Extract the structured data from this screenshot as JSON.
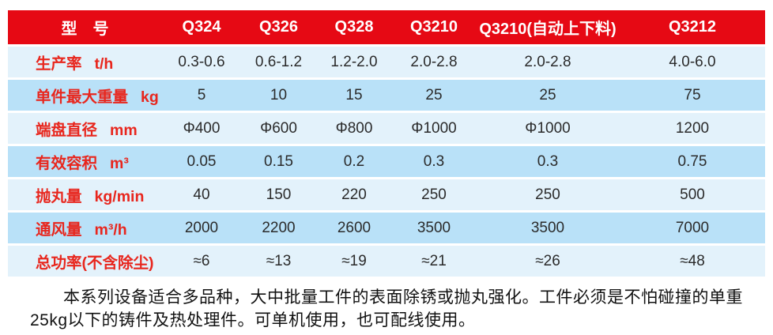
{
  "table": {
    "header": [
      "型　号",
      "Q324",
      "Q326",
      "Q328",
      "Q3210",
      "Q3210(自动上下料)",
      "Q3212"
    ],
    "rows": [
      {
        "label": "生产率",
        "unit": "t/h",
        "values": [
          "0.3-0.6",
          "0.6-1.2",
          "1.2-2.0",
          "2.0-2.8",
          "2.0-2.8",
          "4.0-6.0"
        ]
      },
      {
        "label": "单件最大重量",
        "unit": "kg",
        "values": [
          "5",
          "10",
          "15",
          "25",
          "25",
          "75"
        ]
      },
      {
        "label": "端盘直径",
        "unit": "mm",
        "values": [
          "Φ400",
          "Φ600",
          "Φ800",
          "Φ1000",
          "Φ1000",
          "1200"
        ]
      },
      {
        "label": "有效容积",
        "unit": "m³",
        "values": [
          "0.05",
          "0.15",
          "0.2",
          "0.3",
          "0.3",
          "0.75"
        ]
      },
      {
        "label": "抛丸量",
        "unit": "kg/min",
        "values": [
          "40",
          "150",
          "220",
          "250",
          "250",
          "500"
        ]
      },
      {
        "label": "通风量",
        "unit": "m³/h",
        "values": [
          "2000",
          "2200",
          "2600",
          "3500",
          "3500",
          "7000"
        ]
      },
      {
        "label": "总功率(不含除尘)",
        "unit": "",
        "values": [
          "≈6",
          "≈13",
          "≈19",
          "≈21",
          "≈26",
          "≈48"
        ]
      }
    ]
  },
  "footer": {
    "paragraph": "本系列设备适合多品种，大中批量工件的表面除锈或抛丸强化。工件必须是不怕碰撞的单重25kg以下的铸件及热处理件。可单机使用，也可配线使用。"
  },
  "colors": {
    "header_red": "#e60914",
    "label_red": "#e8261d",
    "row_light_blue": "#e3f2fb",
    "row_dark_blue": "#b9e1f8",
    "value_text": "#2b2b2b"
  }
}
